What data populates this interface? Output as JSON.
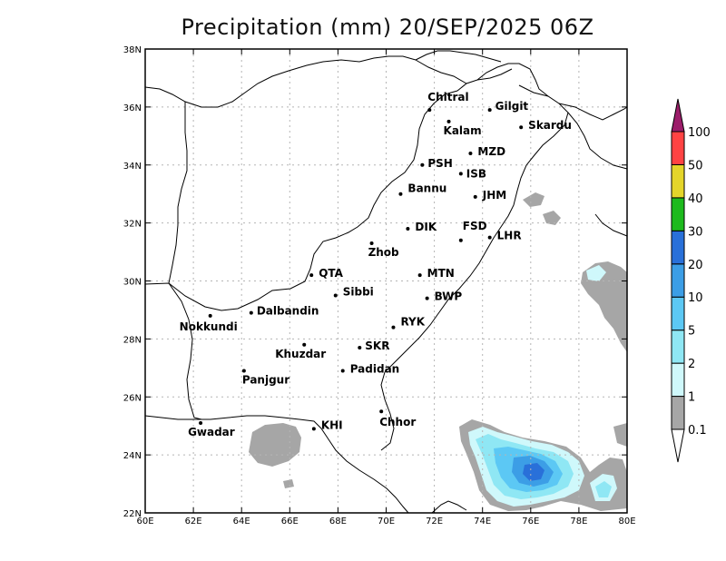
{
  "title": "Precipitation (mm) 20/SEP/2025 06Z",
  "map": {
    "lon_range": [
      60,
      80
    ],
    "lat_range": [
      22,
      38
    ],
    "lon_ticks": [
      "60E",
      "62E",
      "64E",
      "66E",
      "68E",
      "70E",
      "72E",
      "74E",
      "76E",
      "78E",
      "80E"
    ],
    "lat_ticks": [
      "22N",
      "24N",
      "26N",
      "28N",
      "30N",
      "32N",
      "34N",
      "36N",
      "38N"
    ],
    "grid": true
  },
  "colorbar": {
    "labels": [
      "0.1",
      "1",
      "2",
      "5",
      "10",
      "20",
      "30",
      "40",
      "50",
      "100"
    ],
    "colors": {
      "c0": "#a6a6a6",
      "c1": "#cff8fb",
      "c2": "#8fe7f4",
      "c3": "#5cc8f4",
      "c4": "#3c9ee6",
      "c5": "#2970d9",
      "c6": "#1dba1d",
      "c7": "#e4d52a",
      "c8": "#ff4343",
      "c9": "#9c1d6a"
    }
  },
  "cities": [
    {
      "name": "Chitral",
      "lon": 71.8,
      "lat": 35.9
    },
    {
      "name": "Gilgit",
      "lon": 74.3,
      "lat": 35.9
    },
    {
      "name": "Kalam",
      "lon": 72.6,
      "lat": 35.5
    },
    {
      "name": "Skardu",
      "lon": 75.6,
      "lat": 35.3
    },
    {
      "name": "MZD",
      "lon": 73.5,
      "lat": 34.4
    },
    {
      "name": "PSH",
      "lon": 71.5,
      "lat": 34.0
    },
    {
      "name": "ISB",
      "lon": 73.1,
      "lat": 33.7
    },
    {
      "name": "JHM",
      "lon": 73.7,
      "lat": 32.9
    },
    {
      "name": "Bannu",
      "lon": 70.6,
      "lat": 33.0
    },
    {
      "name": "DIK",
      "lon": 70.9,
      "lat": 31.8
    },
    {
      "name": "FSD",
      "lon": 73.1,
      "lat": 31.4
    },
    {
      "name": "LHR",
      "lon": 74.3,
      "lat": 31.5
    },
    {
      "name": "Zhob",
      "lon": 69.4,
      "lat": 31.3
    },
    {
      "name": "QTA",
      "lon": 66.9,
      "lat": 30.2
    },
    {
      "name": "MTN",
      "lon": 71.4,
      "lat": 30.2
    },
    {
      "name": "Sibbi",
      "lon": 67.9,
      "lat": 29.5
    },
    {
      "name": "BWP",
      "lon": 71.7,
      "lat": 29.4
    },
    {
      "name": "Dalbandin",
      "lon": 64.4,
      "lat": 28.9
    },
    {
      "name": "Nokkundi",
      "lon": 62.7,
      "lat": 28.8
    },
    {
      "name": "RYK",
      "lon": 70.3,
      "lat": 28.4
    },
    {
      "name": "Khuzdar",
      "lon": 66.6,
      "lat": 27.8
    },
    {
      "name": "SKR",
      "lon": 68.9,
      "lat": 27.7
    },
    {
      "name": "Padidan",
      "lon": 68.2,
      "lat": 26.9
    },
    {
      "name": "Panjgur",
      "lon": 64.1,
      "lat": 26.9
    },
    {
      "name": "Chhor",
      "lon": 69.8,
      "lat": 25.5
    },
    {
      "name": "Gwadar",
      "lon": 62.3,
      "lat": 25.1
    },
    {
      "name": "KHI",
      "lon": 67.0,
      "lat": 24.9
    }
  ]
}
